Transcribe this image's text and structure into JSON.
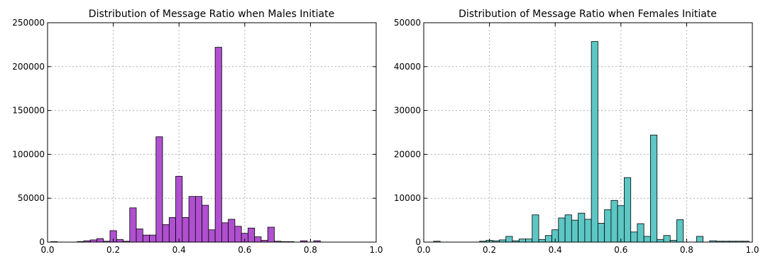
{
  "chart_data": [
    {
      "type": "bar",
      "title": "Distribution of Message Ratio when Males Initiate",
      "xlabel": "",
      "ylabel": "",
      "xlim": [
        0.0,
        1.0
      ],
      "ylim": [
        0,
        250000
      ],
      "grid": true,
      "bar_color": "#b050d0",
      "bin_width": 0.02,
      "x_ticks": [
        "0.0",
        "0.2",
        "0.4",
        "0.6",
        "0.8",
        "1.0"
      ],
      "y_ticks": [
        "0",
        "50000",
        "100000",
        "150000",
        "200000",
        "250000"
      ],
      "bins": [
        {
          "x": 0.02,
          "y": 500
        },
        {
          "x": 0.1,
          "y": 600
        },
        {
          "x": 0.12,
          "y": 1500
        },
        {
          "x": 0.14,
          "y": 2500
        },
        {
          "x": 0.16,
          "y": 4000
        },
        {
          "x": 0.18,
          "y": 1000
        },
        {
          "x": 0.2,
          "y": 13000
        },
        {
          "x": 0.22,
          "y": 3000
        },
        {
          "x": 0.24,
          "y": 1000
        },
        {
          "x": 0.26,
          "y": 39000
        },
        {
          "x": 0.28,
          "y": 15000
        },
        {
          "x": 0.3,
          "y": 8000
        },
        {
          "x": 0.32,
          "y": 8000
        },
        {
          "x": 0.34,
          "y": 120000
        },
        {
          "x": 0.36,
          "y": 20000
        },
        {
          "x": 0.38,
          "y": 28000
        },
        {
          "x": 0.4,
          "y": 75000
        },
        {
          "x": 0.42,
          "y": 28000
        },
        {
          "x": 0.44,
          "y": 52000
        },
        {
          "x": 0.46,
          "y": 52000
        },
        {
          "x": 0.48,
          "y": 42000
        },
        {
          "x": 0.5,
          "y": 14000
        },
        {
          "x": 0.52,
          "y": 222000
        },
        {
          "x": 0.54,
          "y": 22000
        },
        {
          "x": 0.56,
          "y": 26000
        },
        {
          "x": 0.58,
          "y": 18000
        },
        {
          "x": 0.6,
          "y": 10000
        },
        {
          "x": 0.62,
          "y": 16000
        },
        {
          "x": 0.64,
          "y": 6000
        },
        {
          "x": 0.66,
          "y": 2000
        },
        {
          "x": 0.68,
          "y": 17000
        },
        {
          "x": 0.7,
          "y": 1000
        },
        {
          "x": 0.72,
          "y": 500
        },
        {
          "x": 0.74,
          "y": 500
        },
        {
          "x": 0.78,
          "y": 1500
        },
        {
          "x": 0.82,
          "y": 1500
        }
      ]
    },
    {
      "type": "bar",
      "title": "Distribution of Message Ratio when Females Initiate",
      "xlabel": "",
      "ylabel": "",
      "xlim": [
        0.0,
        1.0
      ],
      "ylim": [
        0,
        50000
      ],
      "grid": true,
      "bar_color": "#5cc7c4",
      "bin_width": 0.02,
      "x_ticks": [
        "0.0",
        "0.2",
        "0.4",
        "0.6",
        "0.8",
        "1.0"
      ],
      "y_ticks": [
        "0",
        "10000",
        "20000",
        "30000",
        "40000",
        "50000"
      ],
      "bins": [
        {
          "x": 0.04,
          "y": 200
        },
        {
          "x": 0.18,
          "y": 200
        },
        {
          "x": 0.2,
          "y": 400
        },
        {
          "x": 0.22,
          "y": 300
        },
        {
          "x": 0.24,
          "y": 500
        },
        {
          "x": 0.26,
          "y": 1300
        },
        {
          "x": 0.28,
          "y": 300
        },
        {
          "x": 0.3,
          "y": 700
        },
        {
          "x": 0.32,
          "y": 700
        },
        {
          "x": 0.34,
          "y": 6200
        },
        {
          "x": 0.36,
          "y": 600
        },
        {
          "x": 0.38,
          "y": 1500
        },
        {
          "x": 0.4,
          "y": 2800
        },
        {
          "x": 0.42,
          "y": 5500
        },
        {
          "x": 0.44,
          "y": 6200
        },
        {
          "x": 0.46,
          "y": 5000
        },
        {
          "x": 0.48,
          "y": 6600
        },
        {
          "x": 0.5,
          "y": 5200
        },
        {
          "x": 0.52,
          "y": 45700
        },
        {
          "x": 0.54,
          "y": 4300
        },
        {
          "x": 0.56,
          "y": 7400
        },
        {
          "x": 0.58,
          "y": 9500
        },
        {
          "x": 0.6,
          "y": 8300
        },
        {
          "x": 0.62,
          "y": 14700
        },
        {
          "x": 0.64,
          "y": 2300
        },
        {
          "x": 0.66,
          "y": 4200
        },
        {
          "x": 0.68,
          "y": 1300
        },
        {
          "x": 0.7,
          "y": 24400
        },
        {
          "x": 0.72,
          "y": 600
        },
        {
          "x": 0.74,
          "y": 1500
        },
        {
          "x": 0.76,
          "y": 400
        },
        {
          "x": 0.78,
          "y": 5100
        },
        {
          "x": 0.84,
          "y": 1300
        },
        {
          "x": 0.88,
          "y": 300
        },
        {
          "x": 0.9,
          "y": 200
        },
        {
          "x": 0.92,
          "y": 200
        },
        {
          "x": 0.94,
          "y": 200
        },
        {
          "x": 0.96,
          "y": 200
        },
        {
          "x": 0.98,
          "y": 200
        }
      ]
    }
  ]
}
